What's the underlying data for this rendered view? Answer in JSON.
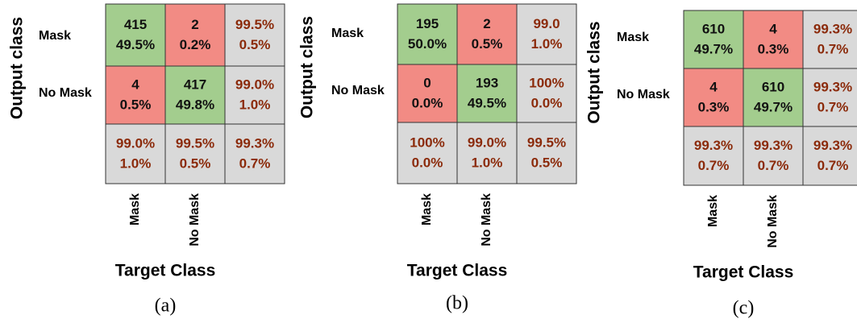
{
  "panels": [
    {
      "y_label": "Output class",
      "row_labels": [
        "Mask",
        "No Mask"
      ],
      "col_labels": [
        "Mask",
        "No Mask"
      ],
      "x_label": "Target Class",
      "caption": "(a)",
      "cells": [
        [
          [
            "415",
            "49.5%"
          ],
          [
            "2",
            "0.2%"
          ],
          [
            "99.5%",
            "0.5%"
          ]
        ],
        [
          [
            "4",
            "0.5%"
          ],
          [
            "417",
            "49.8%"
          ],
          [
            "99.0%",
            "1.0%"
          ]
        ],
        [
          [
            "99.0%",
            "1.0%"
          ],
          [
            "99.5%",
            "0.5%"
          ],
          [
            "99.3%",
            "0.7%"
          ]
        ]
      ]
    },
    {
      "y_label": "Output class",
      "row_labels": [
        "Mask",
        "No Mask"
      ],
      "col_labels": [
        "Mask",
        "No Mask"
      ],
      "x_label": "Target Class",
      "caption": "(b)",
      "cells": [
        [
          [
            "195",
            "50.0%"
          ],
          [
            "2",
            "0.5%"
          ],
          [
            "99.0",
            "1.0%"
          ]
        ],
        [
          [
            "0",
            "0.0%"
          ],
          [
            "193",
            "49.5%"
          ],
          [
            "100%",
            "0.0%"
          ]
        ],
        [
          [
            "100%",
            "0.0%"
          ],
          [
            "99.0%",
            "1.0%"
          ],
          [
            "99.5%",
            "0.5%"
          ]
        ]
      ]
    },
    {
      "y_label": "Output class",
      "row_labels": [
        "Mask",
        "No Mask"
      ],
      "col_labels": [
        "Mask",
        "No Mask"
      ],
      "x_label": "Target Class",
      "caption": "(c)",
      "cells": [
        [
          [
            "610",
            "49.7%"
          ],
          [
            "4",
            "0.3%"
          ],
          [
            "99.3%",
            "0.7%"
          ]
        ],
        [
          [
            "4",
            "0.3%"
          ],
          [
            "610",
            "49.7%"
          ],
          [
            "99.3%",
            "0.7%"
          ]
        ],
        [
          [
            "99.3%",
            "0.7%"
          ],
          [
            "99.3%",
            "0.7%"
          ],
          [
            "99.3%",
            "0.7%"
          ]
        ]
      ]
    }
  ]
}
